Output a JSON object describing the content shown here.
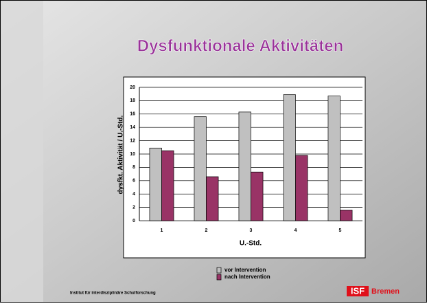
{
  "chart_data": {
    "type": "bar",
    "title": "Dysfunktionale Aktivitäten",
    "x_label": "U.-Std.",
    "y_label": "dysfkt. Aktivität / U.-Std.",
    "categories": [
      "1",
      "2",
      "3",
      "4",
      "5"
    ],
    "series": [
      {
        "name": "vor Intervention",
        "color": "#c0c0c0",
        "values": [
          10.9,
          15.6,
          16.3,
          18.9,
          18.7
        ]
      },
      {
        "name": "nach Intervention",
        "color": "#993366",
        "values": [
          10.5,
          6.6,
          7.3,
          9.8,
          1.6
        ]
      }
    ],
    "ylim": [
      0,
      20
    ],
    "yticks": [
      0,
      2,
      4,
      6,
      8,
      10,
      12,
      14,
      16,
      18,
      20
    ],
    "grid": true
  },
  "footer": {
    "institute": "Institut für interdisziplinäre Schulforschung",
    "logo": "ISF",
    "city": "Bremen"
  }
}
